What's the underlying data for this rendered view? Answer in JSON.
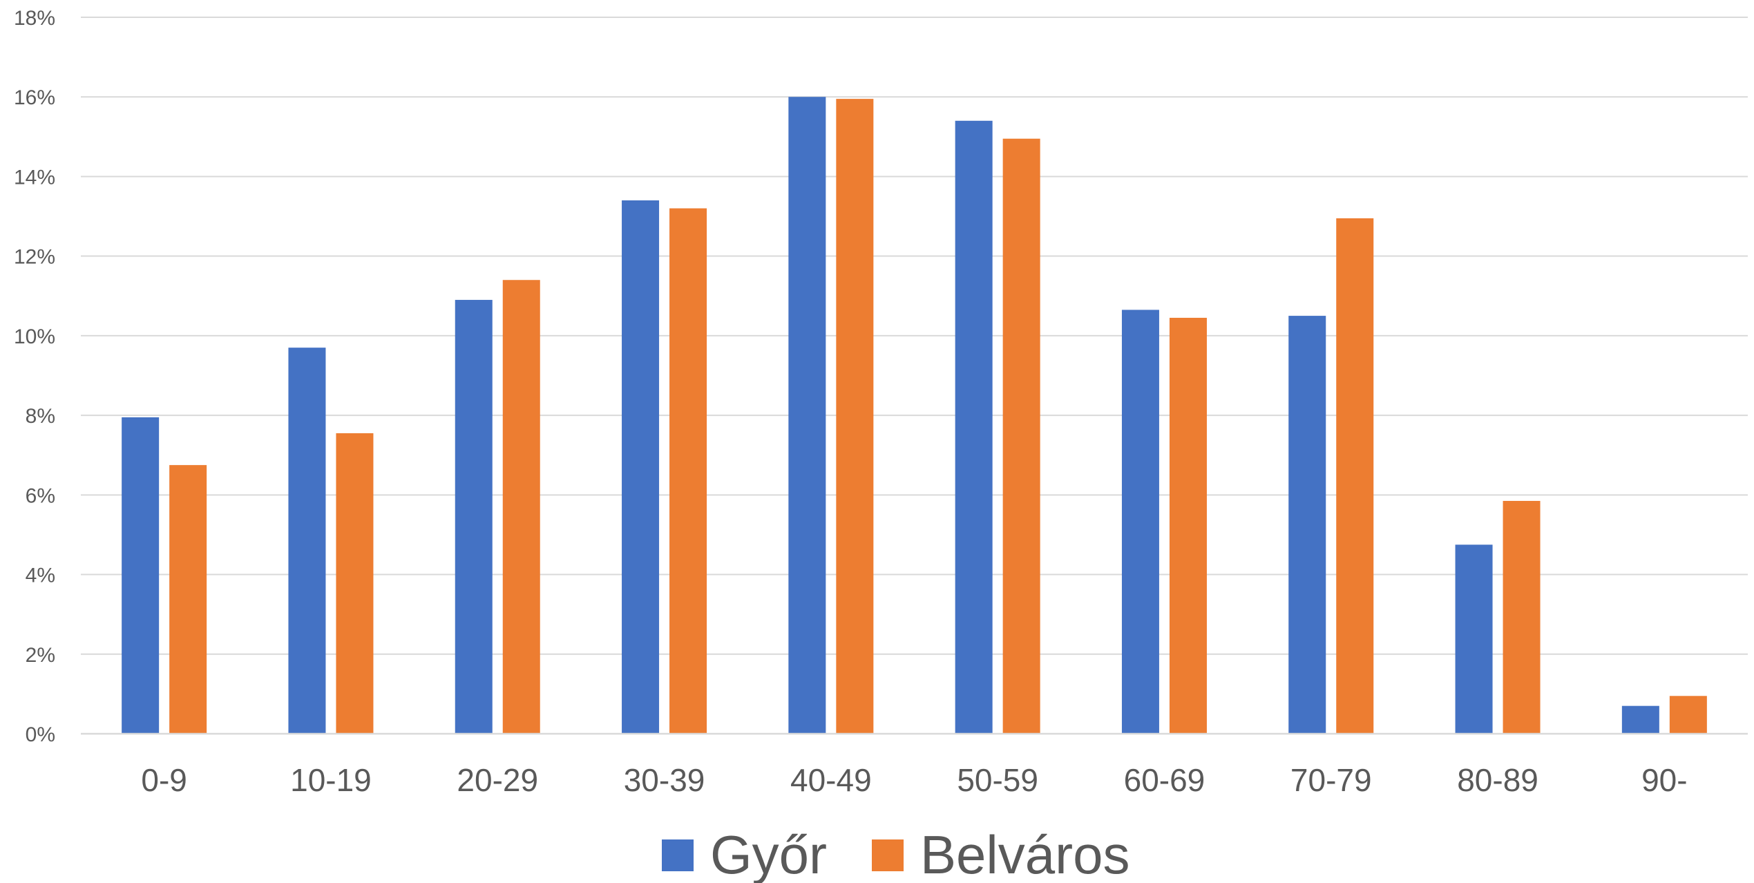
{
  "chart_data": {
    "type": "bar",
    "categories": [
      "0-9",
      "10-19",
      "20-29",
      "30-39",
      "40-49",
      "50-59",
      "60-69",
      "70-79",
      "80-89",
      "90-"
    ],
    "series": [
      {
        "name": "Győr",
        "color": "#4472C4",
        "values": [
          7.95,
          9.7,
          10.9,
          13.4,
          16.0,
          15.4,
          10.65,
          10.5,
          4.75,
          0.7
        ]
      },
      {
        "name": "Belváros",
        "color": "#ED7D31",
        "values": [
          6.75,
          7.55,
          11.4,
          13.2,
          15.95,
          14.95,
          10.45,
          12.95,
          5.85,
          0.95
        ]
      }
    ],
    "y_ticks": [
      "0%",
      "2%",
      "4%",
      "6%",
      "8%",
      "10%",
      "12%",
      "14%",
      "16%",
      "18%"
    ],
    "ylim": [
      0,
      18
    ],
    "y_unit": "%",
    "grid": true,
    "legend_position": "bottom-center"
  }
}
